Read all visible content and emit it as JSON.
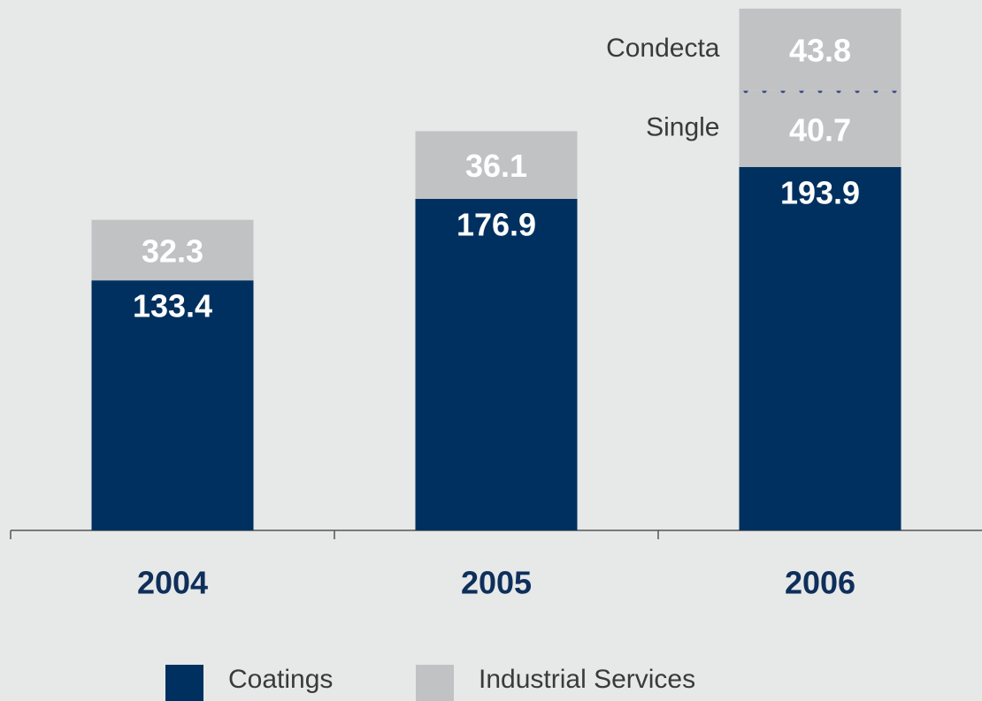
{
  "chart_data": {
    "type": "stacked_bar",
    "categories": [
      "2004",
      "2005",
      "2006"
    ],
    "series": [
      {
        "name": "Coatings",
        "color": "#00305f",
        "values": [
          133.4,
          176.9,
          193.9
        ]
      },
      {
        "name": "Industrial Services",
        "color": "#c0c2c4",
        "values": [
          32.3,
          36.1,
          40.7
        ],
        "labels": [
          null,
          null,
          "Single"
        ]
      },
      {
        "name": "Condecta",
        "color": "#c0c2c4",
        "values": [
          null,
          null,
          43.8
        ],
        "in_legend": false,
        "divider_color": "#3b4a8a"
      }
    ],
    "ylim": [
      0,
      283
    ]
  }
}
